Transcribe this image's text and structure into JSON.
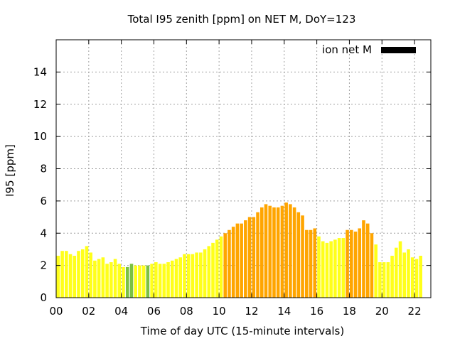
{
  "chart_data": {
    "type": "bar",
    "title": "Total I95 zenith [ppm] on NET M, DoY=123",
    "xlabel": "Time of day UTC (15-minute intervals)",
    "ylabel": "I95 [ppm]",
    "ylim": [
      0,
      16
    ],
    "yticks": [
      0,
      2,
      4,
      6,
      8,
      10,
      12,
      14
    ],
    "xlim": [
      0,
      23
    ],
    "xticks": [
      0,
      2,
      4,
      6,
      8,
      10,
      12,
      14,
      16,
      18,
      20,
      22
    ],
    "xtick_labels": [
      "00",
      "02",
      "04",
      "06",
      "08",
      "10",
      "12",
      "14",
      "16",
      "18",
      "20",
      "22"
    ],
    "grid": true,
    "legend": {
      "label": "ion net M",
      "color": "#000000",
      "position": "top-right"
    },
    "colors": {
      "green": "#7ac143",
      "yellow": "#ffff1a",
      "orange": "#ffa500"
    },
    "bar_width_hours": 0.2,
    "values": [
      2.6,
      2.9,
      2.9,
      2.7,
      2.6,
      2.9,
      3.0,
      3.2,
      2.8,
      2.3,
      2.4,
      2.5,
      2.1,
      2.2,
      2.4,
      2.1,
      1.9,
      1.9,
      2.1,
      2.0,
      2.0,
      2.0,
      2.0,
      2.1,
      2.2,
      2.1,
      2.1,
      2.2,
      2.3,
      2.4,
      2.5,
      2.7,
      2.7,
      2.7,
      2.8,
      2.8,
      3.0,
      3.2,
      3.4,
      3.6,
      3.8,
      4.0,
      4.2,
      4.4,
      4.6,
      4.6,
      4.8,
      5.0,
      5.0,
      5.3,
      5.6,
      5.8,
      5.7,
      5.6,
      5.6,
      5.7,
      5.9,
      5.8,
      5.6,
      5.3,
      5.1,
      4.2,
      4.2,
      4.3,
      3.8,
      3.5,
      3.4,
      3.5,
      3.6,
      3.7,
      3.7,
      4.2,
      4.2,
      4.1,
      4.3,
      4.8,
      4.6,
      4.0,
      3.3,
      2.2,
      2.2,
      2.2,
      2.6,
      3.1,
      3.5,
      2.8,
      3.0,
      2.5,
      2.4,
      2.6
    ],
    "bar_colors": [
      "yellow",
      "yellow",
      "yellow",
      "yellow",
      "yellow",
      "yellow",
      "yellow",
      "yellow",
      "yellow",
      "yellow",
      "yellow",
      "yellow",
      "yellow",
      "yellow",
      "yellow",
      "yellow",
      "yellow",
      "green",
      "green",
      "yellow",
      "yellow",
      "yellow",
      "green",
      "yellow",
      "yellow",
      "yellow",
      "yellow",
      "yellow",
      "yellow",
      "yellow",
      "yellow",
      "yellow",
      "yellow",
      "yellow",
      "yellow",
      "yellow",
      "yellow",
      "yellow",
      "yellow",
      "yellow",
      "yellow",
      "orange",
      "orange",
      "orange",
      "orange",
      "orange",
      "orange",
      "orange",
      "orange",
      "orange",
      "orange",
      "orange",
      "orange",
      "orange",
      "orange",
      "orange",
      "orange",
      "orange",
      "orange",
      "orange",
      "orange",
      "orange",
      "orange",
      "orange",
      "yellow",
      "yellow",
      "yellow",
      "yellow",
      "yellow",
      "yellow",
      "yellow",
      "orange",
      "orange",
      "orange",
      "orange",
      "orange",
      "orange",
      "orange",
      "yellow",
      "yellow",
      "yellow",
      "yellow",
      "yellow",
      "yellow",
      "yellow",
      "yellow",
      "yellow",
      "yellow",
      "yellow",
      "yellow"
    ]
  }
}
